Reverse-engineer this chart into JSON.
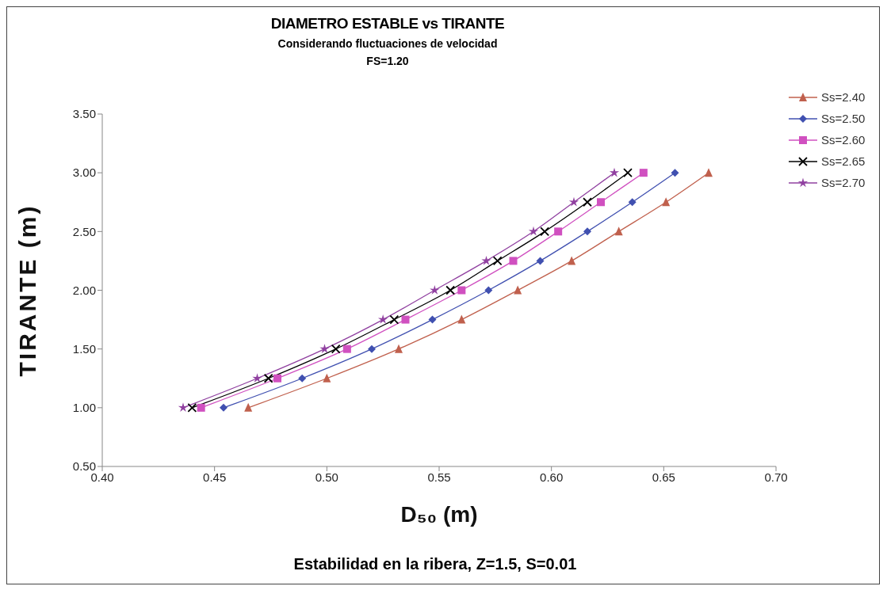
{
  "chart_data": {
    "type": "line",
    "title": "DIAMETRO ESTABLE vs TIRANTE",
    "subtitle": "Considerando fluctuaciones de velocidad\nFS=1.20",
    "xlabel": "D₅₀ (m)",
    "ylabel": "TIRANTE (m)",
    "annotations": [
      "Estabilidad en la ribera, Z=1.5, S=0.01"
    ],
    "xlim": [
      0.4,
      0.7
    ],
    "xticks": [
      {
        "value": 0.4,
        "label": "0.40"
      },
      {
        "value": 0.45,
        "label": "0.45"
      },
      {
        "value": 0.5,
        "label": "0.50"
      },
      {
        "value": 0.55,
        "label": "0.55"
      },
      {
        "value": 0.6,
        "label": "0.60"
      },
      {
        "value": 0.65,
        "label": "0.65"
      },
      {
        "value": 0.7,
        "label": "0.70"
      }
    ],
    "ylim": [
      0.5,
      3.5
    ],
    "yticks": [
      {
        "value": 0.5,
        "label": "0.50"
      },
      {
        "value": 1,
        "label": "1.00"
      },
      {
        "value": 1.5,
        "label": "1.50"
      },
      {
        "value": 2,
        "label": "2.00"
      },
      {
        "value": 2.5,
        "label": "2.50"
      },
      {
        "value": 3,
        "label": "3.00"
      },
      {
        "value": 3.5,
        "label": "3.50"
      }
    ],
    "grid": false,
    "legend": "top right",
    "line_style": "solid",
    "series": [
      {
        "name": "Ss=2.40",
        "color": "#c0604d",
        "marker": "triangle",
        "x": [
          0.465,
          0.5,
          0.532,
          0.56,
          0.585,
          0.609,
          0.63,
          0.651,
          0.67
        ],
        "values": [
          1.0,
          1.25,
          1.5,
          1.75,
          2.0,
          2.25,
          2.5,
          2.75,
          3.0
        ]
      },
      {
        "name": "Ss=2.50",
        "color": "#4050b0",
        "marker": "diamond",
        "x": [
          0.454,
          0.489,
          0.52,
          0.547,
          0.572,
          0.595,
          0.616,
          0.636,
          0.655
        ],
        "values": [
          1.0,
          1.25,
          1.5,
          1.75,
          2.0,
          2.25,
          2.5,
          2.75,
          3.0
        ]
      },
      {
        "name": "Ss=2.60",
        "color": "#d050c0",
        "marker": "square",
        "x": [
          0.444,
          0.478,
          0.509,
          0.535,
          0.56,
          0.583,
          0.603,
          0.622,
          0.641
        ],
        "values": [
          1.0,
          1.25,
          1.5,
          1.75,
          2.0,
          2.25,
          2.5,
          2.75,
          3.0
        ]
      },
      {
        "name": "Ss=2.65",
        "color": "#000000",
        "marker": "cross",
        "x": [
          0.44,
          0.474,
          0.504,
          0.53,
          0.555,
          0.576,
          0.597,
          0.616,
          0.634
        ],
        "values": [
          1.0,
          1.25,
          1.5,
          1.75,
          2.0,
          2.25,
          2.5,
          2.75,
          3.0
        ]
      },
      {
        "name": "Ss=2.70",
        "color": "#9040a0",
        "marker": "star",
        "x": [
          0.436,
          0.469,
          0.499,
          0.525,
          0.548,
          0.571,
          0.592,
          0.61,
          0.628
        ],
        "values": [
          1.0,
          1.25,
          1.5,
          1.75,
          2.0,
          2.25,
          2.5,
          2.75,
          3.0
        ]
      }
    ]
  }
}
